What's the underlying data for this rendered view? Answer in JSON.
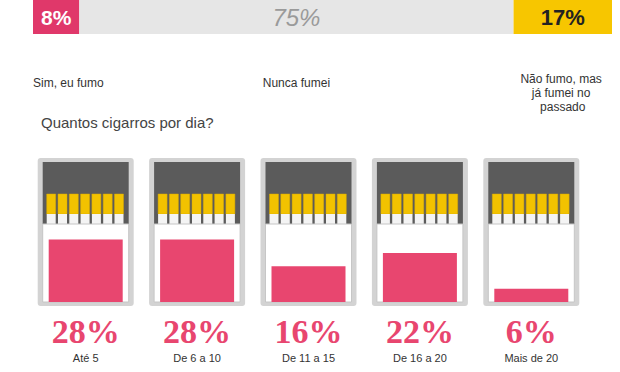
{
  "chart_data": [
    {
      "type": "bar",
      "orientation": "horizontal",
      "stacked": true,
      "categories": [
        null
      ],
      "series": [
        {
          "name": "Sim, eu fumo",
          "color": "#e0386a",
          "values": [
            8
          ],
          "value_labels": [
            "8%"
          ]
        },
        {
          "name": "Nunca fumei",
          "color": "#e6e6e6",
          "values": [
            75
          ],
          "value_labels": [
            "75%"
          ]
        },
        {
          "name": "Não fumo, mas já fumei no passado",
          "color": "#f7c600",
          "values": [
            17
          ],
          "value_labels": [
            "17%"
          ]
        }
      ],
      "xlim": [
        0,
        100
      ],
      "data_labels": true,
      "tick_labels": false
    },
    {
      "type": "bar",
      "title": "Quantos cigarros por dia?",
      "categories": [
        "Até 5",
        "De 6 a 10",
        "De 11 a 15",
        "De 16 a 20",
        "Mais de 20"
      ],
      "values": [
        28,
        28,
        16,
        22,
        6
      ],
      "value_labels": [
        "28%",
        "28%",
        "16%",
        "22%",
        "6%"
      ],
      "color": "#e8466f",
      "ylim": [
        0,
        35
      ],
      "data_labels": true,
      "tick_labels": "x"
    }
  ]
}
